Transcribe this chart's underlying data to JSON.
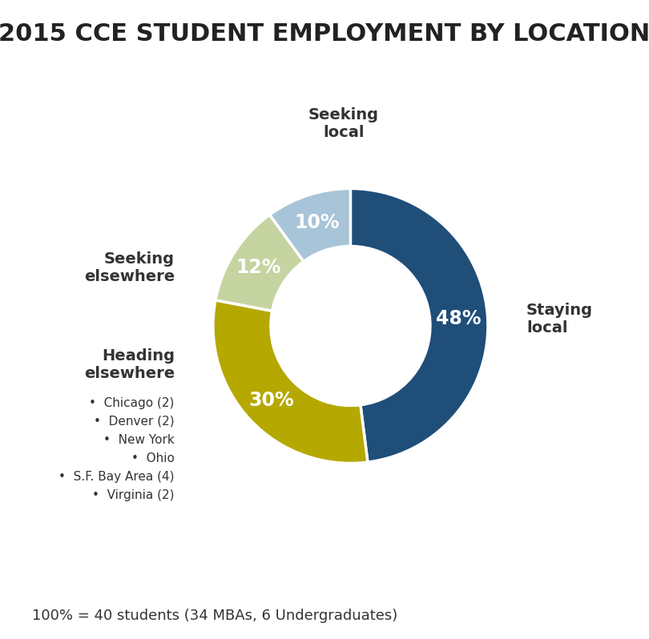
{
  "title": "2015 CCE STUDENT EMPLOYMENT BY LOCATION",
  "slices": [
    48,
    30,
    12,
    10
  ],
  "labels": [
    "Staying\nlocal",
    "Heading\nelsewhere",
    "Seeking\nelsewhere",
    "Seeking\nlocal"
  ],
  "pct_labels": [
    "48%",
    "30%",
    "12%",
    "10%"
  ],
  "colors": [
    "#1f4e79",
    "#b5a800",
    "#c5d4a0",
    "#a8c4d8"
  ],
  "startangle": 90,
  "footnote": "100% = 40 students (34 MBAs, 6 Undergraduates)",
  "heading_elsewhere_bullets": [
    "Chicago (2)",
    "Denver (2)",
    "New York",
    "Ohio",
    "S.F. Bay Area (4)",
    "Virginia (2)"
  ],
  "background_color": "#ffffff",
  "title_fontsize": 22,
  "label_fontsize": 14,
  "pct_fontsize": 17,
  "footnote_fontsize": 13,
  "bullet_fontsize": 11
}
